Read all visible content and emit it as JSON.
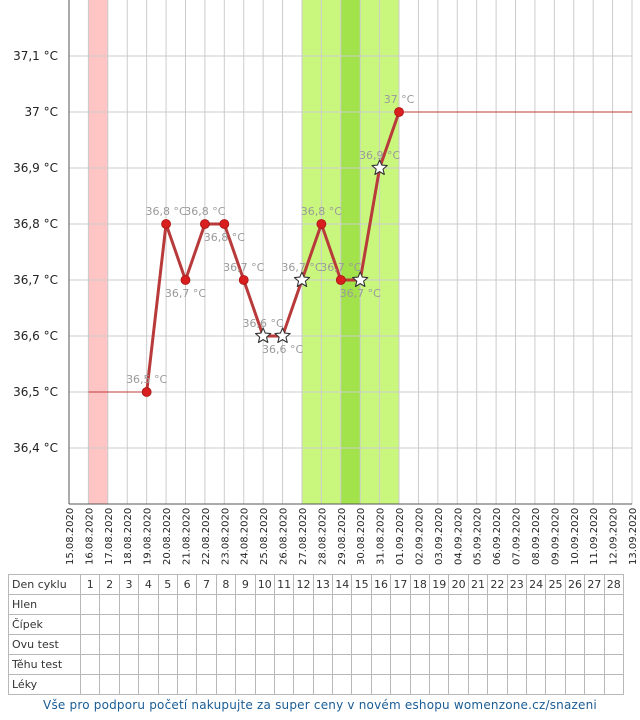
{
  "chart_data": {
    "type": "line",
    "y_unit": "°C",
    "yticks": [
      "36,4 °C",
      "36,5 °C",
      "36,6 °C",
      "36,7 °C",
      "36,8 °C",
      "36,9 °C",
      "37 °C",
      "37,1 °C"
    ],
    "ylim": [
      36.3,
      37.2
    ],
    "x_dates": [
      "15.08.2020",
      "16.08.2020",
      "17.08.2020",
      "18.08.2020",
      "19.08.2020",
      "20.08.2020",
      "21.08.2020",
      "22.08.2020",
      "23.08.2020",
      "24.08.2020",
      "25.08.2020",
      "26.08.2020",
      "27.08.2020",
      "28.08.2020",
      "29.08.2020",
      "30.08.2020",
      "31.08.2020",
      "01.09.2020",
      "02.09.2020",
      "03.09.2020",
      "04.09.2020",
      "05.09.2020",
      "06.09.2020",
      "07.09.2020",
      "08.09.2020",
      "09.09.2020",
      "10.09.2020",
      "11.09.2020",
      "12.09.2020",
      "13.09.2020"
    ],
    "grid": true,
    "highlight_bands": [
      {
        "from": "16.08.2020",
        "to": "16.08.2020",
        "color": "#ffc4c4"
      },
      {
        "from": "27.08.2020",
        "to": "31.08.2020",
        "color": "#c9f77e"
      },
      {
        "from": "29.08.2020",
        "to": "29.08.2020",
        "color": "#a2e24a"
      }
    ],
    "baseline_before": {
      "value": 36.5,
      "from": "16.08.2020",
      "to": "18.08.2020"
    },
    "baseline_after": {
      "value": 37.0,
      "from": "01.09.2020",
      "to": "12.09.2020"
    },
    "points": [
      {
        "date": "19.08.2020",
        "value": 36.5,
        "label": "36,5 °C",
        "marker": "dot"
      },
      {
        "date": "20.08.2020",
        "value": 36.8,
        "label": "36,8 °C",
        "marker": "dot"
      },
      {
        "date": "21.08.2020",
        "value": 36.7,
        "label": "36,7 °C",
        "marker": "dot"
      },
      {
        "date": "22.08.2020",
        "value": 36.8,
        "label": "36,8 °C",
        "marker": "dot"
      },
      {
        "date": "23.08.2020",
        "value": 36.8,
        "label": "36,8 °C",
        "marker": "dot"
      },
      {
        "date": "24.08.2020",
        "value": 36.7,
        "label": "36,7 °C",
        "marker": "dot"
      },
      {
        "date": "25.08.2020",
        "value": 36.6,
        "label": "36,6 °C",
        "marker": "star"
      },
      {
        "date": "26.08.2020",
        "value": 36.6,
        "label": "36,6 °C",
        "marker": "star"
      },
      {
        "date": "27.08.2020",
        "value": 36.7,
        "label": "36,7 °C",
        "marker": "star"
      },
      {
        "date": "28.08.2020",
        "value": 36.8,
        "label": "36,8 °C",
        "marker": "dot"
      },
      {
        "date": "29.08.2020",
        "value": 36.7,
        "label": "36,7 °C",
        "marker": "dot"
      },
      {
        "date": "30.08.2020",
        "value": 36.7,
        "label": "36,7 °C",
        "marker": "star"
      },
      {
        "date": "31.08.2020",
        "value": 36.9,
        "label": "36,9 °C",
        "marker": "star"
      },
      {
        "date": "01.09.2020",
        "value": 37.0,
        "label": "37 °C",
        "marker": "dot"
      }
    ],
    "colors": {
      "line": "#b83a3a",
      "dot": "#d81e1e",
      "grid": "#cccccc",
      "label": "#9a9a9a"
    }
  },
  "table": {
    "rows": [
      "Den cyklu",
      "Hlen",
      "Čípek",
      "Ovu test",
      "Těhu test",
      "Léky"
    ],
    "cycle_days": [
      "1",
      "2",
      "3",
      "4",
      "5",
      "6",
      "7",
      "8",
      "9",
      "10",
      "11",
      "12",
      "13",
      "14",
      "15",
      "16",
      "17",
      "18",
      "19",
      "20",
      "21",
      "22",
      "23",
      "24",
      "25",
      "26",
      "27",
      "28"
    ]
  },
  "footer": {
    "text": "Vše pro podporu početí nakupujte za super ceny v novém eshopu womenzone.cz/snazeni"
  }
}
